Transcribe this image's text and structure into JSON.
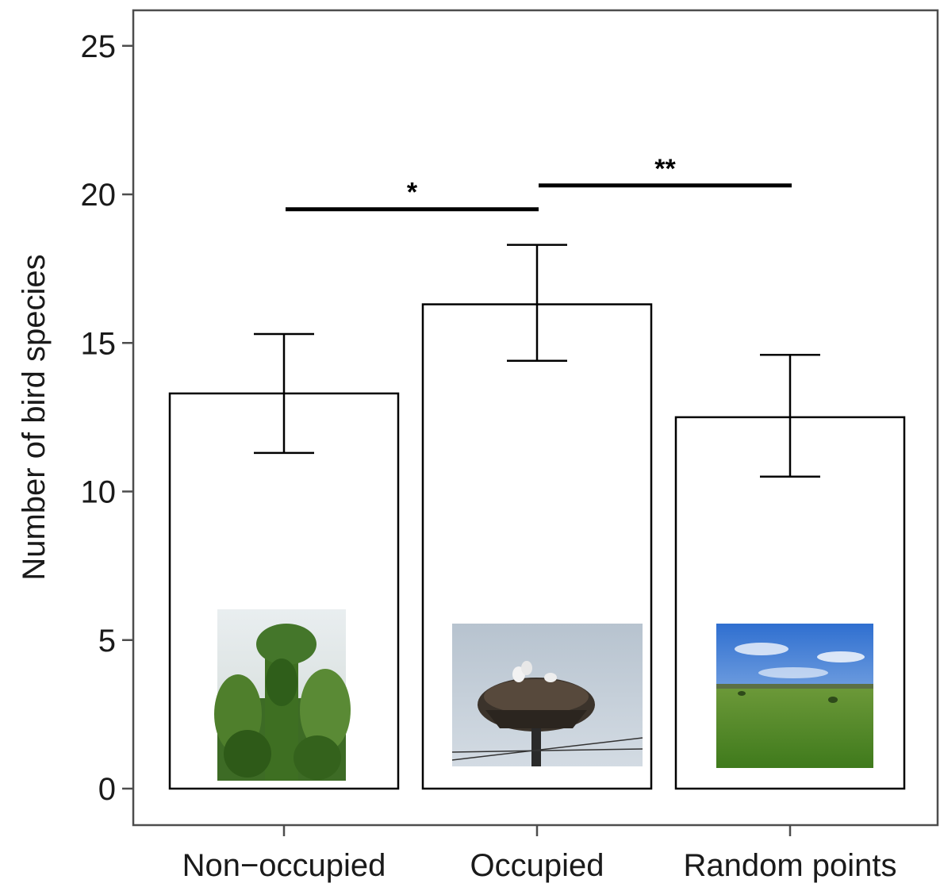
{
  "chart_data": {
    "type": "bar",
    "title": "",
    "xlabel": "",
    "ylabel": "Number of bird species",
    "categories": [
      "Non−occupied",
      "Occupied",
      "Random points"
    ],
    "values": [
      13.3,
      16.3,
      12.5
    ],
    "error_low": [
      11.3,
      14.4,
      10.5
    ],
    "error_high": [
      15.3,
      18.3,
      14.6
    ],
    "ylim": [
      -1.2,
      26.3
    ],
    "yticks": [
      0,
      5,
      10,
      15,
      20,
      25
    ],
    "grid": false,
    "legend": "none",
    "bar_fill": "#ffffff",
    "bar_stroke": "#000000",
    "significance": [
      {
        "from": 0,
        "to": 1,
        "y": 19.5,
        "label": "*"
      },
      {
        "from": 1,
        "to": 2,
        "y": 20.3,
        "label": "**"
      }
    ],
    "photos": [
      {
        "category": 0,
        "icon": "ivy-covered-pole-photo"
      },
      {
        "category": 1,
        "icon": "stork-nest-photo"
      },
      {
        "category": 2,
        "icon": "green-field-photo"
      }
    ]
  }
}
